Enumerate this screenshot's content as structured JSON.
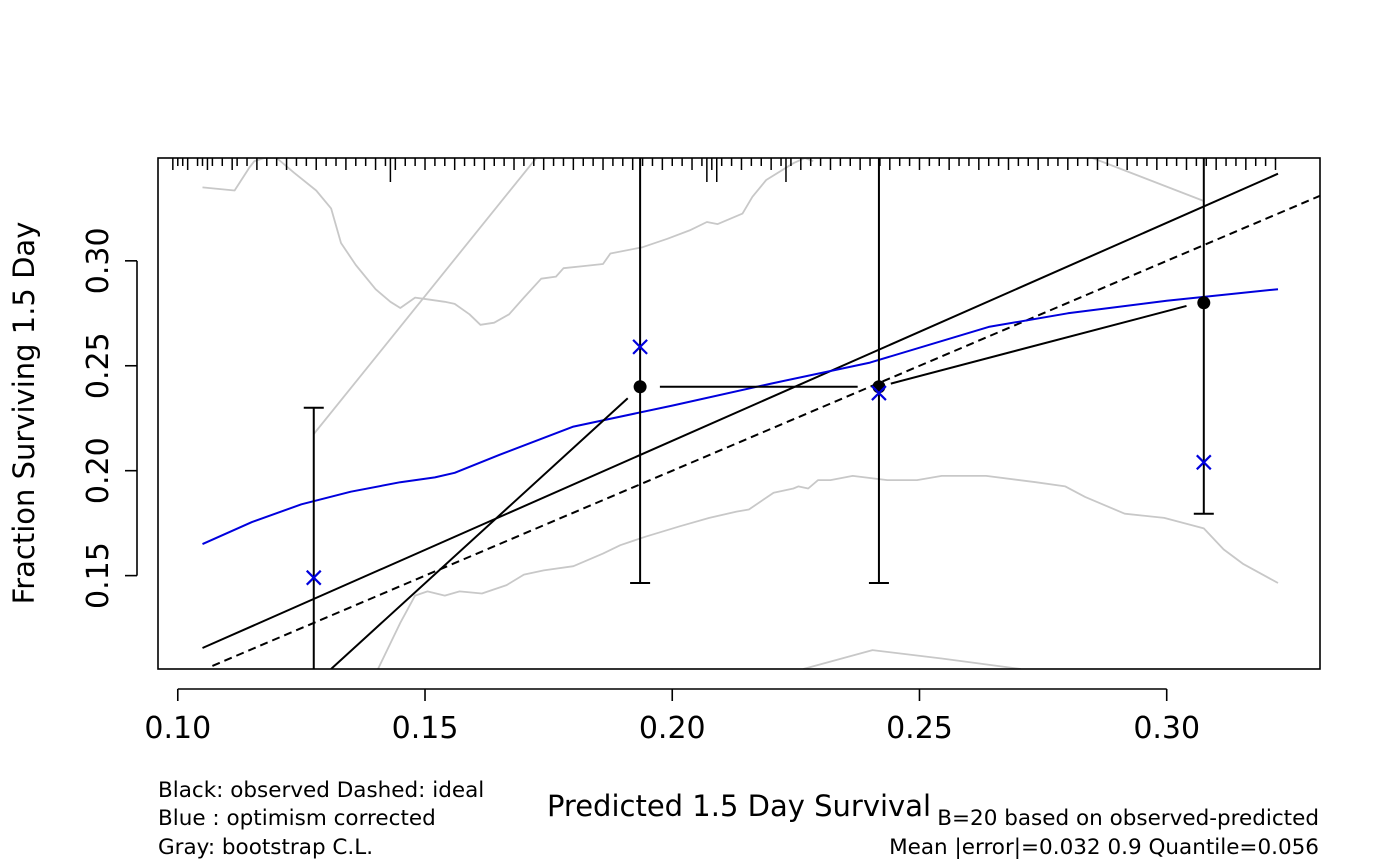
{
  "chart_data": {
    "type": "line",
    "title": "",
    "xlabel": "Predicted  1.5 Day Survival",
    "ylabel": "Fraction Surviving 1.5 Day",
    "xlim": [
      0.096,
      0.331
    ],
    "ylim": [
      0.1055,
      0.349
    ],
    "x_ticks": [
      0.1,
      0.15,
      0.2,
      0.25,
      0.3
    ],
    "x_tick_labels": [
      "0.10",
      "0.15",
      "0.20",
      "0.25",
      "0.30"
    ],
    "y_ticks": [
      0.15,
      0.2,
      0.25,
      0.3
    ],
    "y_tick_labels": [
      "0.15",
      "0.20",
      "0.25",
      "0.30"
    ],
    "grid": false,
    "colors": {
      "observed": "#000000",
      "ideal": "#000000",
      "optimism": "#0000dd",
      "bootstrap": "#c8c8c8"
    },
    "rug_x": [
      0.099,
      0.1,
      0.101,
      0.102,
      0.104,
      0.105,
      0.106,
      0.107,
      0.109,
      0.111,
      0.112,
      0.114,
      0.116,
      0.118,
      0.12,
      0.122,
      0.124,
      0.126,
      0.128,
      0.13,
      0.132,
      0.134,
      0.136,
      0.138,
      0.14,
      0.142,
      0.143,
      0.144,
      0.146,
      0.148,
      0.15,
      0.152,
      0.154,
      0.156,
      0.158,
      0.16,
      0.162,
      0.164,
      0.166,
      0.168,
      0.17,
      0.172,
      0.174,
      0.176,
      0.178,
      0.18,
      0.182,
      0.184,
      0.186,
      0.188,
      0.19,
      0.192,
      0.194,
      0.196,
      0.198,
      0.2,
      0.202,
      0.204,
      0.206,
      0.207,
      0.208,
      0.21,
      0.212,
      0.214,
      0.216,
      0.218,
      0.22,
      0.222,
      0.224,
      0.226,
      0.228,
      0.23,
      0.232,
      0.234,
      0.236,
      0.238,
      0.24,
      0.242,
      0.244,
      0.246,
      0.248,
      0.25,
      0.252,
      0.254,
      0.256,
      0.258,
      0.26,
      0.262,
      0.264,
      0.266,
      0.268,
      0.27,
      0.272,
      0.274,
      0.276,
      0.278,
      0.28,
      0.282,
      0.284,
      0.286,
      0.288,
      0.29,
      0.292,
      0.294,
      0.296,
      0.298,
      0.3,
      0.302,
      0.304,
      0.306,
      0.308,
      0.31,
      0.312,
      0.314,
      0.316,
      0.318,
      0.32,
      0.322
    ],
    "rug_long_x": [
      0.143,
      0.207,
      0.209,
      0.223
    ],
    "series": [
      {
        "name": "observed",
        "style": "solid",
        "x": [
          0.105,
          0.3225
        ],
        "y": [
          0.1155,
          0.3415
        ]
      },
      {
        "name": "ideal",
        "style": "dashed",
        "x": [
          0.107,
          0.331
        ],
        "y": [
          0.107,
          0.331
        ]
      },
      {
        "name": "optimism corrected",
        "style": "solid",
        "x": [
          0.105,
          0.115,
          0.125,
          0.135,
          0.145,
          0.152,
          0.156,
          0.165,
          0.18,
          0.2,
          0.22,
          0.24,
          0.264,
          0.28,
          0.3,
          0.3225
        ],
        "y": [
          0.165,
          0.1755,
          0.184,
          0.19,
          0.1945,
          0.1968,
          0.199,
          0.2075,
          0.221,
          0.231,
          0.2415,
          0.2515,
          0.2685,
          0.275,
          0.281,
          0.2865
        ]
      },
      {
        "name": "bootstrap upper",
        "style": "solid",
        "x": [
          0.105,
          0.1115,
          0.1145,
          0.1155,
          0.1175,
          0.12,
          0.1235,
          0.128,
          0.131,
          0.133,
          0.136,
          0.14,
          0.143,
          0.145,
          0.148,
          0.151,
          0.154,
          0.156,
          0.159,
          0.1612,
          0.164,
          0.167,
          0.17,
          0.1735,
          0.1765,
          0.178,
          0.182,
          0.186,
          0.1875,
          0.194,
          0.199,
          0.2035,
          0.207,
          0.2092,
          0.2142,
          0.2162,
          0.219,
          0.2245,
          0.2268,
          0.2285
        ],
        "y": [
          0.335,
          0.3335,
          0.3445,
          0.3475,
          0.349,
          0.349,
          0.342,
          0.3335,
          0.325,
          0.3085,
          0.298,
          0.2865,
          0.2805,
          0.2775,
          0.2825,
          0.2815,
          0.2805,
          0.2795,
          0.2745,
          0.2695,
          0.2705,
          0.2745,
          0.2825,
          0.2915,
          0.2925,
          0.2965,
          0.2975,
          0.2985,
          0.3035,
          0.3065,
          0.3105,
          0.3145,
          0.3185,
          0.3175,
          0.3225,
          0.3305,
          0.3385,
          0.3465,
          0.349,
          0.3475
        ]
      },
      {
        "name": "bootstrap lower",
        "style": "solid",
        "x": [
          0.1405,
          0.145,
          0.148,
          0.1505,
          0.154,
          0.157,
          0.1615,
          0.1665,
          0.17,
          0.174,
          0.18,
          0.186,
          0.1895,
          0.1945,
          0.2015,
          0.2075,
          0.213,
          0.2155,
          0.2205,
          0.2245,
          0.2255,
          0.2275,
          0.2295,
          0.232,
          0.2365,
          0.2435,
          0.2495,
          0.2545,
          0.2635,
          0.2735,
          0.2795,
          0.2835,
          0.2915,
          0.2995,
          0.3075,
          0.3115,
          0.3155,
          0.3225
        ],
        "y": [
          0.1055,
          0.1275,
          0.1405,
          0.1425,
          0.1405,
          0.1425,
          0.1415,
          0.1455,
          0.1505,
          0.1525,
          0.1545,
          0.1605,
          0.1645,
          0.1685,
          0.1735,
          0.1775,
          0.1805,
          0.1815,
          0.1895,
          0.1915,
          0.1925,
          0.1915,
          0.1955,
          0.1955,
          0.1975,
          0.1955,
          0.1955,
          0.1975,
          0.1975,
          0.1945,
          0.1925,
          0.1875,
          0.1795,
          0.1775,
          0.1725,
          0.1625,
          0.1555,
          0.1465
        ]
      },
      {
        "name": "bootstrap diagonal upper",
        "style": "solid",
        "x": [
          0.1275,
          0.1725
        ],
        "y": [
          0.2175,
          0.349
        ]
      },
      {
        "name": "bootstrap top right",
        "style": "solid",
        "x": [
          0.285,
          0.3075
        ],
        "y": [
          0.349,
          0.3285
        ]
      },
      {
        "name": "bootstrap bottom",
        "style": "solid",
        "x": [
          0.2265,
          0.2405,
          0.2545,
          0.2705
        ],
        "y": [
          0.1055,
          0.1145,
          0.1105,
          0.1055
        ]
      }
    ],
    "observed_points": {
      "x": [
        0.1935,
        0.2418,
        0.3075
      ],
      "y": [
        0.24,
        0.24,
        0.28
      ]
    },
    "predicted_points": {
      "x": [
        0.1275,
        0.1935,
        0.2418,
        0.3075
      ],
      "y": [
        0.149,
        0.259,
        0.237,
        0.204
      ]
    },
    "error_bars": [
      {
        "x": 0.1275,
        "low": 0.1055,
        "high": 0.23
      },
      {
        "x": 0.1935,
        "low": 0.1465,
        "high": 0.349
      },
      {
        "x": 0.2418,
        "low": 0.1465,
        "high": 0.349
      },
      {
        "x": 0.3075,
        "low": 0.1795,
        "high": 0.349
      }
    ],
    "connectors": [
      {
        "x": [
          0.131,
          0.191
        ],
        "y": [
          0.1055,
          0.2345
        ]
      },
      {
        "x": 0.1975,
        "x2": 0.2375,
        "y": 0.24,
        "horizontal": true
      },
      {
        "x": [
          0.2442,
          0.304
        ],
        "y": [
          0.2415,
          0.2785
        ]
      }
    ],
    "legend_left": [
      "Black: observed  Dashed: ideal",
      "Blue : optimism corrected",
      "Gray: bootstrap C.L."
    ],
    "legend_right": [
      "B=20 based on observed-predicted",
      "Mean |error|=0.032  0.9 Quantile=0.056"
    ]
  }
}
